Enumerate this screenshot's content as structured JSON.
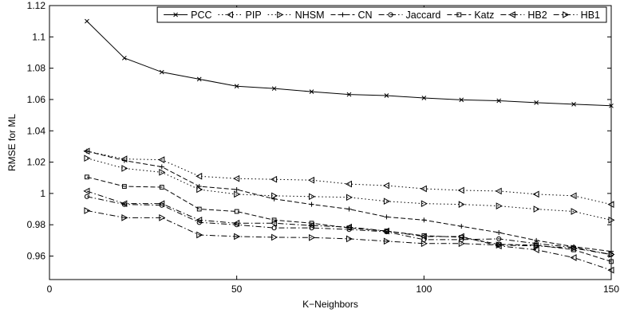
{
  "chart_data": {
    "type": "line",
    "xlabel": "K−Neighbors",
    "ylabel": "RMSE for ML",
    "xlim": [
      0,
      150
    ],
    "ylim": [
      0.945,
      1.12
    ],
    "xticks": [
      0,
      50,
      100,
      150
    ],
    "xtick_labels": [
      "0",
      "50",
      "100",
      "150"
    ],
    "yticks": [
      0.96,
      0.98,
      1.0,
      1.02,
      1.04,
      1.06,
      1.08,
      1.1,
      1.12
    ],
    "ytick_labels": [
      "0.96",
      "0.98",
      "1",
      "1.02",
      "1.04",
      "1.06",
      "1.08",
      "1.1",
      "1.12"
    ],
    "grid": false,
    "legend_position": "top-right",
    "x": [
      10,
      20,
      30,
      40,
      50,
      60,
      70,
      80,
      90,
      100,
      110,
      120,
      130,
      140,
      150
    ],
    "series": [
      {
        "name": "PCC",
        "line": "solid",
        "marker": "cross",
        "values": [
          1.11,
          1.0865,
          1.0775,
          1.073,
          1.0685,
          1.067,
          1.065,
          1.0632,
          1.0625,
          1.061,
          1.0598,
          1.0592,
          1.058,
          1.057,
          1.056
        ]
      },
      {
        "name": "PIP",
        "line": "dotted",
        "marker": "tri-left",
        "values": [
          1.027,
          1.022,
          1.0215,
          1.011,
          1.0095,
          1.009,
          1.0085,
          1.006,
          1.005,
          1.003,
          1.002,
          1.0015,
          0.9995,
          0.9985,
          0.993
        ]
      },
      {
        "name": "NHSM",
        "line": "dotted",
        "marker": "tri-right",
        "values": [
          1.0225,
          1.016,
          1.0135,
          1.0025,
          0.9995,
          0.9985,
          0.998,
          0.9975,
          0.995,
          0.9935,
          0.993,
          0.992,
          0.99,
          0.9885,
          0.983
        ]
      },
      {
        "name": "CN",
        "line": "dashed",
        "marker": "plus",
        "values": [
          1.027,
          1.021,
          1.017,
          1.0045,
          1.0025,
          0.9965,
          0.993,
          0.99,
          0.985,
          0.983,
          0.979,
          0.975,
          0.97,
          0.966,
          0.963
        ]
      },
      {
        "name": "Jaccard",
        "line": "dashdot",
        "marker": "circle",
        "values": [
          0.998,
          0.993,
          0.9925,
          0.9815,
          0.98,
          0.978,
          0.978,
          0.977,
          0.9755,
          0.9705,
          0.9705,
          0.971,
          0.968,
          0.9655,
          0.961
        ]
      },
      {
        "name": "Katz",
        "line": "dashed",
        "marker": "square",
        "values": [
          1.0105,
          1.0045,
          1.004,
          0.99,
          0.9885,
          0.983,
          0.981,
          0.978,
          0.976,
          0.973,
          0.972,
          0.9675,
          0.967,
          0.964,
          0.9565
        ]
      },
      {
        "name": "HB2",
        "line": "dashdot",
        "marker": "tri-left",
        "values": [
          1.0015,
          0.9935,
          0.9935,
          0.983,
          0.981,
          0.981,
          0.9795,
          0.9785,
          0.976,
          0.9725,
          0.9725,
          0.9665,
          0.964,
          0.959,
          0.951
        ]
      },
      {
        "name": "HB1",
        "line": "dashdot",
        "marker": "tri-right",
        "values": [
          0.989,
          0.9845,
          0.9845,
          0.9735,
          0.9725,
          0.972,
          0.9718,
          0.971,
          0.9695,
          0.968,
          0.968,
          0.967,
          0.9665,
          0.965,
          0.961
        ]
      }
    ]
  }
}
